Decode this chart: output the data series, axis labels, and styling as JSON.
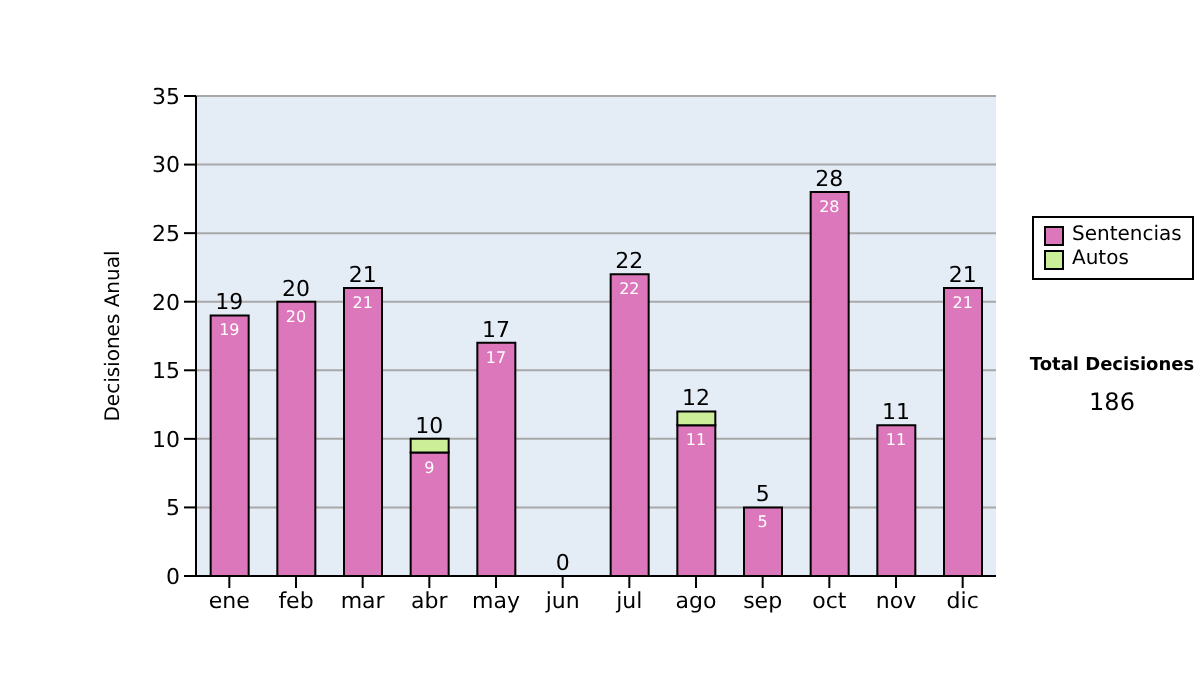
{
  "chart_data": {
    "type": "bar",
    "ylabel": "Decisiones Anual",
    "categories": [
      "ene",
      "feb",
      "mar",
      "abr",
      "may",
      "jun",
      "jul",
      "ago",
      "sep",
      "oct",
      "nov",
      "dic"
    ],
    "series": [
      {
        "name": "Sentencias",
        "color": "#dd77bb",
        "values": [
          19,
          20,
          21,
          9,
          17,
          0,
          22,
          11,
          5,
          28,
          11,
          21
        ],
        "value_labels": [
          "19",
          "20",
          "21",
          "9",
          "17",
          null,
          "22",
          "11",
          "5",
          "28",
          "11",
          "21"
        ]
      },
      {
        "name": "Autos",
        "color": "#ccee99",
        "values": [
          0,
          0,
          0,
          1,
          0,
          0,
          0,
          1,
          0,
          0,
          0,
          0
        ]
      }
    ],
    "stacked": true,
    "totals": [
      "19",
      "20",
      "21",
      "10",
      "17",
      "0",
      "22",
      "12",
      "5",
      "28",
      "11",
      "21"
    ],
    "ylim": [
      0,
      35
    ],
    "yticks": [
      0,
      5,
      10,
      15,
      20,
      25,
      30,
      35
    ],
    "grid": "y",
    "legend": "right",
    "annotations": [
      "Total Decisiones",
      "186"
    ]
  }
}
